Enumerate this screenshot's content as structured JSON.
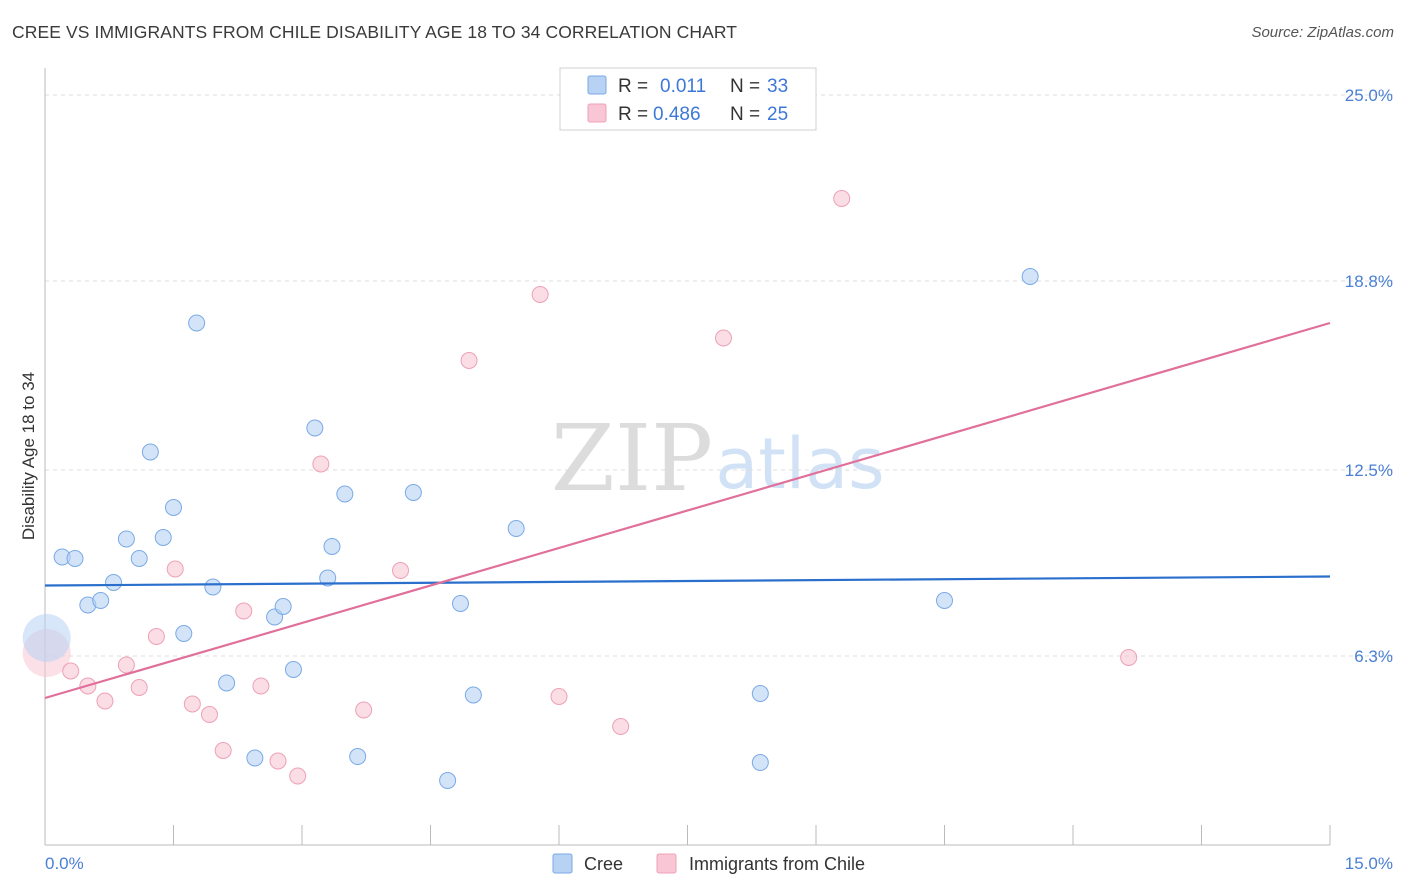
{
  "header": {
    "title": "CREE VS IMMIGRANTS FROM CHILE DISABILITY AGE 18 TO 34 CORRELATION CHART",
    "source": "Source: ZipAtlas.com"
  },
  "watermark": {
    "zip": "ZIP",
    "atlas": "atlas"
  },
  "colors": {
    "cree_fill": "#b8d2f4",
    "cree_stroke": "#7aaae6",
    "cree_line": "#2a6fcc",
    "chile_fill": "#f8c6d4",
    "chile_stroke": "#eda1b7",
    "chile_line": "#e0709a",
    "axis_label": "#4a7fd4"
  },
  "legend": {
    "rows": [
      {
        "r_label": "R =",
        "r_value": "0.011",
        "n_label": "N =",
        "n_value": "33"
      },
      {
        "r_label": "R =",
        "r_value": "0.486",
        "n_label": "N =",
        "n_value": "25"
      }
    ]
  },
  "bottom_legend": {
    "cree": "Cree",
    "chile": "Immigrants from Chile"
  },
  "chart_data": {
    "type": "scatter",
    "title": "CREE VS IMMIGRANTS FROM CHILE DISABILITY AGE 18 TO 34 CORRELATION CHART",
    "xlabel": "",
    "ylabel": "Disability Age 18 to 34",
    "xlim": [
      0,
      15
    ],
    "ylim": [
      0,
      25.5
    ],
    "x_tick_labels": [
      "0.0%",
      "15.0%"
    ],
    "y_ticks": [
      6.3,
      12.5,
      18.8,
      25.0
    ],
    "y_tick_labels": [
      "6.3%",
      "12.5%",
      "18.8%",
      "25.0%"
    ],
    "series": [
      {
        "name": "Cree",
        "r": 0.011,
        "n": 33,
        "trend": {
          "x": [
            0,
            15
          ],
          "y": [
            8.65,
            8.95
          ]
        },
        "points": [
          {
            "x": 0.02,
            "y": 6.9,
            "big": true
          },
          {
            "x": 0.2,
            "y": 9.6
          },
          {
            "x": 0.35,
            "y": 9.55
          },
          {
            "x": 0.5,
            "y": 8.0
          },
          {
            "x": 0.65,
            "y": 8.15
          },
          {
            "x": 0.8,
            "y": 8.75
          },
          {
            "x": 0.95,
            "y": 10.2
          },
          {
            "x": 1.1,
            "y": 9.55
          },
          {
            "x": 1.23,
            "y": 13.1
          },
          {
            "x": 1.38,
            "y": 10.25
          },
          {
            "x": 1.5,
            "y": 11.25
          },
          {
            "x": 1.62,
            "y": 7.05
          },
          {
            "x": 1.77,
            "y": 17.4
          },
          {
            "x": 1.96,
            "y": 8.6
          },
          {
            "x": 2.12,
            "y": 5.4
          },
          {
            "x": 2.45,
            "y": 2.9
          },
          {
            "x": 2.68,
            "y": 7.6
          },
          {
            "x": 2.78,
            "y": 7.95
          },
          {
            "x": 2.9,
            "y": 5.85
          },
          {
            "x": 3.15,
            "y": 13.9
          },
          {
            "x": 3.3,
            "y": 8.9
          },
          {
            "x": 3.35,
            "y": 9.95
          },
          {
            "x": 3.5,
            "y": 11.7
          },
          {
            "x": 3.65,
            "y": 2.95
          },
          {
            "x": 4.3,
            "y": 11.75
          },
          {
            "x": 4.7,
            "y": 2.15
          },
          {
            "x": 4.85,
            "y": 8.05
          },
          {
            "x": 5.0,
            "y": 5.0
          },
          {
            "x": 5.5,
            "y": 10.55
          },
          {
            "x": 8.35,
            "y": 5.05
          },
          {
            "x": 8.35,
            "y": 2.75
          },
          {
            "x": 10.5,
            "y": 8.15
          },
          {
            "x": 11.5,
            "y": 18.95
          }
        ]
      },
      {
        "name": "Immigrants from Chile",
        "r": 0.486,
        "n": 25,
        "trend": {
          "x": [
            0,
            15
          ],
          "y": [
            4.9,
            17.4
          ]
        },
        "points": [
          {
            "x": 0.02,
            "y": 6.4,
            "big": true
          },
          {
            "x": 0.3,
            "y": 5.8
          },
          {
            "x": 0.5,
            "y": 5.3
          },
          {
            "x": 0.7,
            "y": 4.8
          },
          {
            "x": 0.95,
            "y": 6.0
          },
          {
            "x": 1.1,
            "y": 5.25
          },
          {
            "x": 1.3,
            "y": 6.95
          },
          {
            "x": 1.52,
            "y": 9.2
          },
          {
            "x": 1.72,
            "y": 4.7
          },
          {
            "x": 1.92,
            "y": 4.35
          },
          {
            "x": 2.08,
            "y": 3.15
          },
          {
            "x": 2.32,
            "y": 7.8
          },
          {
            "x": 2.52,
            "y": 5.3
          },
          {
            "x": 2.72,
            "y": 2.8
          },
          {
            "x": 2.95,
            "y": 2.3
          },
          {
            "x": 3.22,
            "y": 12.7
          },
          {
            "x": 3.72,
            "y": 4.5
          },
          {
            "x": 4.15,
            "y": 9.15
          },
          {
            "x": 4.95,
            "y": 16.15
          },
          {
            "x": 5.78,
            "y": 18.35
          },
          {
            "x": 6.0,
            "y": 4.95
          },
          {
            "x": 6.72,
            "y": 3.95
          },
          {
            "x": 7.92,
            "y": 16.9
          },
          {
            "x": 9.3,
            "y": 21.55
          },
          {
            "x": 12.65,
            "y": 6.25
          }
        ]
      }
    ]
  }
}
